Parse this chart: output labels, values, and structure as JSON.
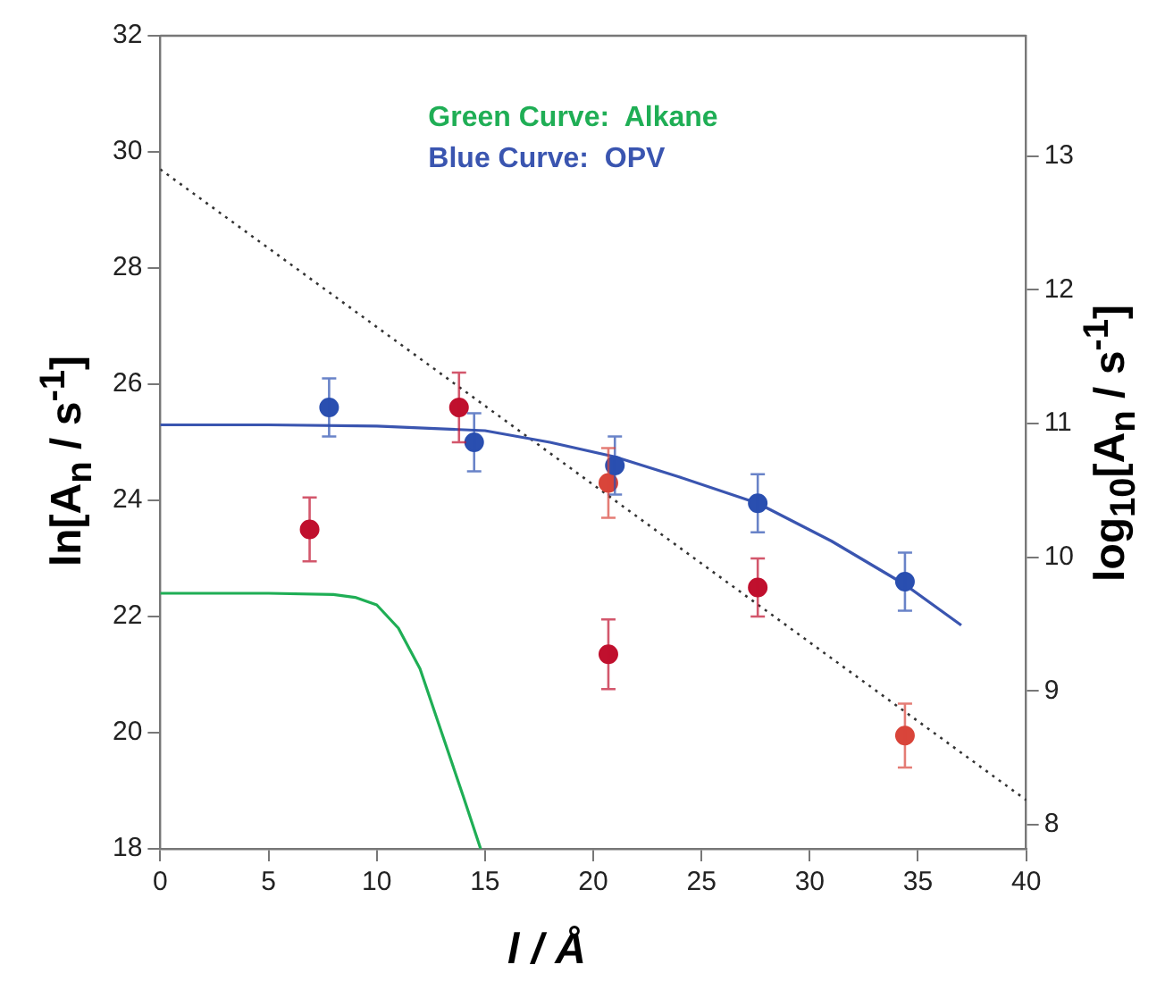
{
  "chart_data": {
    "type": "scatter",
    "xlabel": "l / Å",
    "ylabel": "ln[A$_{n}$ / s$^{-1}$]",
    "y2label": "log$_{10}$[A$_{n}$ / s$^{-1}$]",
    "xlim": [
      0,
      40
    ],
    "xticks": [
      0,
      5,
      10,
      15,
      20,
      25,
      30,
      35,
      40
    ],
    "ylim": [
      18,
      32
    ],
    "yticks": [
      18,
      20,
      22,
      24,
      26,
      28,
      30,
      32
    ],
    "y2lim": [
      7.82,
      13.9
    ],
    "y2ticks": [
      8,
      9,
      10,
      11,
      12,
      13
    ],
    "grid": false,
    "legend": "top left",
    "marker": "circle",
    "series": [
      {
        "name": "Green Curve:  Alkane",
        "type": "line",
        "color": "#1fae55",
        "marker": "none",
        "x": [
          0,
          5,
          8,
          9,
          10,
          11,
          12,
          13,
          14,
          14.8
        ],
        "values": [
          22.4,
          22.4,
          22.38,
          22.33,
          22.2,
          21.8,
          21.1,
          20.0,
          18.9,
          18.0
        ]
      },
      {
        "name": "Blue Curve:  OPV",
        "type": "line",
        "color": "#3a55b0",
        "marker": "none",
        "x": [
          0,
          5,
          10,
          15,
          18,
          21,
          24,
          27.6,
          31,
          34.4,
          37
        ],
        "values": [
          25.3,
          25.3,
          25.28,
          25.2,
          25.0,
          24.75,
          24.4,
          23.95,
          23.3,
          22.55,
          21.85
        ]
      },
      {
        "type": "line",
        "color": "#333333",
        "marker": "none",
        "line_style": "dotted",
        "x": [
          0,
          40
        ],
        "values": [
          29.7,
          18.84
        ]
      },
      {
        "color": "#2a4fb0",
        "x": [
          7.8,
          14.5,
          21,
          27.6,
          34.4
        ],
        "values": [
          25.6,
          25.0,
          24.6,
          23.95,
          22.6
        ],
        "errors": [
          0.5,
          0.5,
          0.5,
          0.5,
          0.5
        ]
      },
      {
        "color": "#c0102e",
        "x": [
          6.9,
          13.8,
          20.7,
          27.6
        ],
        "values": [
          23.5,
          25.6,
          21.35,
          22.5
        ],
        "errors": [
          0.55,
          0.6,
          0.6,
          0.5
        ]
      },
      {
        "color": "#d9453a",
        "x": [
          20.7,
          34.4
        ],
        "values": [
          24.3,
          19.95
        ],
        "errors": [
          0.6,
          0.55
        ]
      }
    ]
  }
}
